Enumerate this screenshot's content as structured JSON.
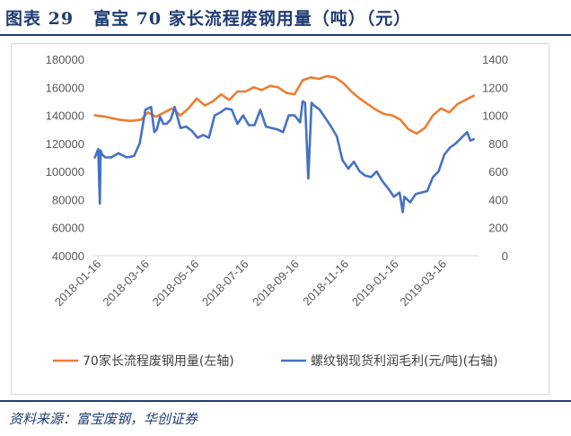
{
  "header": {
    "fig_label": "图表 29",
    "title": "富宝 70 家长流程废钢用量（吨）（元）"
  },
  "footer": {
    "source": "资料来源：富宝废钢，华创证券"
  },
  "colors": {
    "series_left": "#ed7d31",
    "series_right": "#4472c4",
    "title": "#1f3c73",
    "axis_text": "#595959"
  },
  "chart_data": {
    "type": "line",
    "title": "",
    "ylim_left": [
      40000,
      180000
    ],
    "yticks_left": [
      40000,
      60000,
      80000,
      100000,
      120000,
      140000,
      160000,
      180000
    ],
    "ylim_right": [
      0,
      1400
    ],
    "yticks_right": [
      0,
      200,
      400,
      600,
      800,
      1000,
      1200,
      1400
    ],
    "xlim": [
      "2018-01-09",
      "2019-04-28"
    ],
    "x_tick_labels": [
      "2018-01-16",
      "2018-03-16",
      "2018-05-16",
      "2018-07-16",
      "2018-09-16",
      "2018-11-16",
      "2019-01-16",
      "2019-03-16"
    ],
    "legend_position": "bottom",
    "series": [
      {
        "name": "70家长流程废钢用量(左轴)",
        "axis": "left",
        "x": [
          "2018-01-12",
          "2018-01-25",
          "2018-02-10",
          "2018-02-25",
          "2018-03-10",
          "2018-03-18",
          "2018-03-28",
          "2018-04-07",
          "2018-04-17",
          "2018-04-27",
          "2018-05-07",
          "2018-05-17",
          "2018-05-27",
          "2018-06-06",
          "2018-06-16",
          "2018-06-26",
          "2018-07-06",
          "2018-07-16",
          "2018-07-26",
          "2018-08-05",
          "2018-08-15",
          "2018-08-25",
          "2018-09-04",
          "2018-09-14",
          "2018-09-24",
          "2018-10-04",
          "2018-10-14",
          "2018-10-24",
          "2018-11-03",
          "2018-11-13",
          "2018-11-23",
          "2018-12-03",
          "2018-12-13",
          "2018-12-23",
          "2019-01-02",
          "2019-01-12",
          "2019-01-22",
          "2019-02-01",
          "2019-02-11",
          "2019-02-21",
          "2019-03-03",
          "2019-03-13",
          "2019-03-23",
          "2019-04-02",
          "2019-04-12",
          "2019-04-22"
        ],
        "values": [
          140000,
          139000,
          137000,
          136000,
          137000,
          142000,
          139000,
          142000,
          145000,
          140000,
          145000,
          152000,
          147000,
          150000,
          155000,
          151000,
          157000,
          157000,
          160000,
          158000,
          161000,
          160000,
          156000,
          155000,
          165000,
          167000,
          166000,
          168000,
          167000,
          163000,
          157000,
          152000,
          148000,
          144000,
          141000,
          140000,
          137000,
          130000,
          127000,
          131000,
          140000,
          145000,
          142000,
          148000,
          151000,
          154000
        ]
      },
      {
        "name": "螺纹钢现货利润毛利(元/吨)(右轴)",
        "axis": "right",
        "x": [
          "2018-01-12",
          "2018-01-16",
          "2018-01-18",
          "2018-01-19",
          "2018-01-21",
          "2018-01-25",
          "2018-02-01",
          "2018-02-10",
          "2018-02-20",
          "2018-03-01",
          "2018-03-08",
          "2018-03-15",
          "2018-03-22",
          "2018-03-26",
          "2018-03-29",
          "2018-04-02",
          "2018-04-06",
          "2018-04-10",
          "2018-04-15",
          "2018-04-20",
          "2018-04-27",
          "2018-05-04",
          "2018-05-11",
          "2018-05-18",
          "2018-05-25",
          "2018-06-01",
          "2018-06-08",
          "2018-06-15",
          "2018-06-22",
          "2018-06-29",
          "2018-07-06",
          "2018-07-13",
          "2018-07-20",
          "2018-07-27",
          "2018-08-03",
          "2018-08-10",
          "2018-08-17",
          "2018-08-24",
          "2018-08-31",
          "2018-09-07",
          "2018-09-14",
          "2018-09-21",
          "2018-09-24",
          "2018-09-27",
          "2018-10-01",
          "2018-10-05",
          "2018-10-08",
          "2018-10-15",
          "2018-10-22",
          "2018-10-29",
          "2018-11-05",
          "2018-11-12",
          "2018-11-19",
          "2018-11-26",
          "2018-12-03",
          "2018-12-10",
          "2018-12-17",
          "2018-12-24",
          "2018-12-31",
          "2019-01-07",
          "2019-01-14",
          "2019-01-21",
          "2019-01-25",
          "2019-01-27",
          "2019-02-03",
          "2019-02-10",
          "2019-02-17",
          "2019-02-24",
          "2019-03-03",
          "2019-03-10",
          "2019-03-17",
          "2019-03-24",
          "2019-03-31",
          "2019-04-07",
          "2019-04-14",
          "2019-04-18",
          "2019-04-22"
        ],
        "values": [
          700,
          760,
          370,
          750,
          720,
          700,
          700,
          730,
          700,
          710,
          800,
          1040,
          1060,
          880,
          900,
          990,
          940,
          940,
          970,
          1060,
          910,
          920,
          890,
          840,
          860,
          840,
          1000,
          1020,
          1050,
          1040,
          940,
          1000,
          930,
          930,
          1040,
          920,
          910,
          900,
          880,
          1000,
          1000,
          950,
          1100,
          1090,
          550,
          1090,
          1070,
          1040,
          980,
          920,
          850,
          680,
          620,
          670,
          600,
          570,
          560,
          600,
          530,
          480,
          420,
          450,
          310,
          420,
          380,
          440,
          450,
          460,
          560,
          600,
          720,
          770,
          800,
          840,
          880,
          820,
          830
        ]
      }
    ]
  }
}
